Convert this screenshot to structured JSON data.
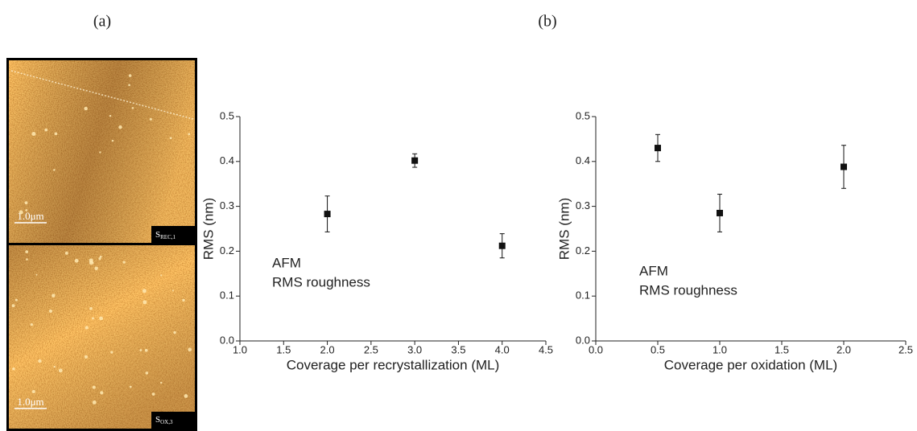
{
  "panel_labels": [
    "(a)",
    "(b)"
  ],
  "images": [
    {
      "scale_bar": "1.0μm",
      "label": "S",
      "label_sub": "REC,1"
    },
    {
      "scale_bar": "1.0μm",
      "label": "S",
      "label_sub": "OX,3"
    }
  ],
  "chart_data": [
    {
      "type": "scatter",
      "x_label": "Coverage per recrystallization (ML)",
      "y_label": "RMS (nm)",
      "annotations": [
        "AFM",
        "RMS roughness"
      ],
      "x": [
        2.0,
        3.0,
        4.0
      ],
      "values": [
        0.283,
        0.402,
        0.212
      ],
      "errors": [
        0.04,
        0.015,
        0.027
      ],
      "color": "#111111",
      "xlim": [
        1.0,
        4.5
      ],
      "xticks": [
        {
          "value": 1.0,
          "label": "1.0"
        },
        1.5,
        {
          "value": 2.0,
          "label": "2.0"
        },
        2.5,
        {
          "value": 3.0,
          "label": "3.0"
        },
        3.5,
        {
          "value": 4.0,
          "label": "4.0"
        },
        4.5
      ],
      "ylim": [
        0.0,
        0.5
      ],
      "yticks": [
        {
          "value": 0.0,
          "label": "0.0"
        },
        0.1,
        0.2,
        0.3,
        0.4,
        0.5
      ]
    },
    {
      "type": "scatter",
      "x_label": "Coverage per oxidation (ML)",
      "y_label": "RMS (nm)",
      "annotations": [
        "AFM",
        "RMS roughness"
      ],
      "x": [
        0.5,
        1.0,
        2.0
      ],
      "values": [
        0.43,
        0.285,
        0.388
      ],
      "errors": [
        0.03,
        0.042,
        0.048
      ],
      "color": "#111111",
      "xlim": [
        0.0,
        2.5
      ],
      "xticks": [
        {
          "value": 0.0,
          "label": "0.0"
        },
        0.5,
        {
          "value": 1.0,
          "label": "1.0"
        },
        1.5,
        {
          "value": 2.0,
          "label": "2.0"
        },
        2.5
      ],
      "ylim": [
        0.0,
        0.5
      ],
      "yticks": [
        {
          "value": 0.0,
          "label": "0.0"
        },
        0.1,
        0.2,
        0.3,
        0.4,
        0.5
      ]
    }
  ]
}
